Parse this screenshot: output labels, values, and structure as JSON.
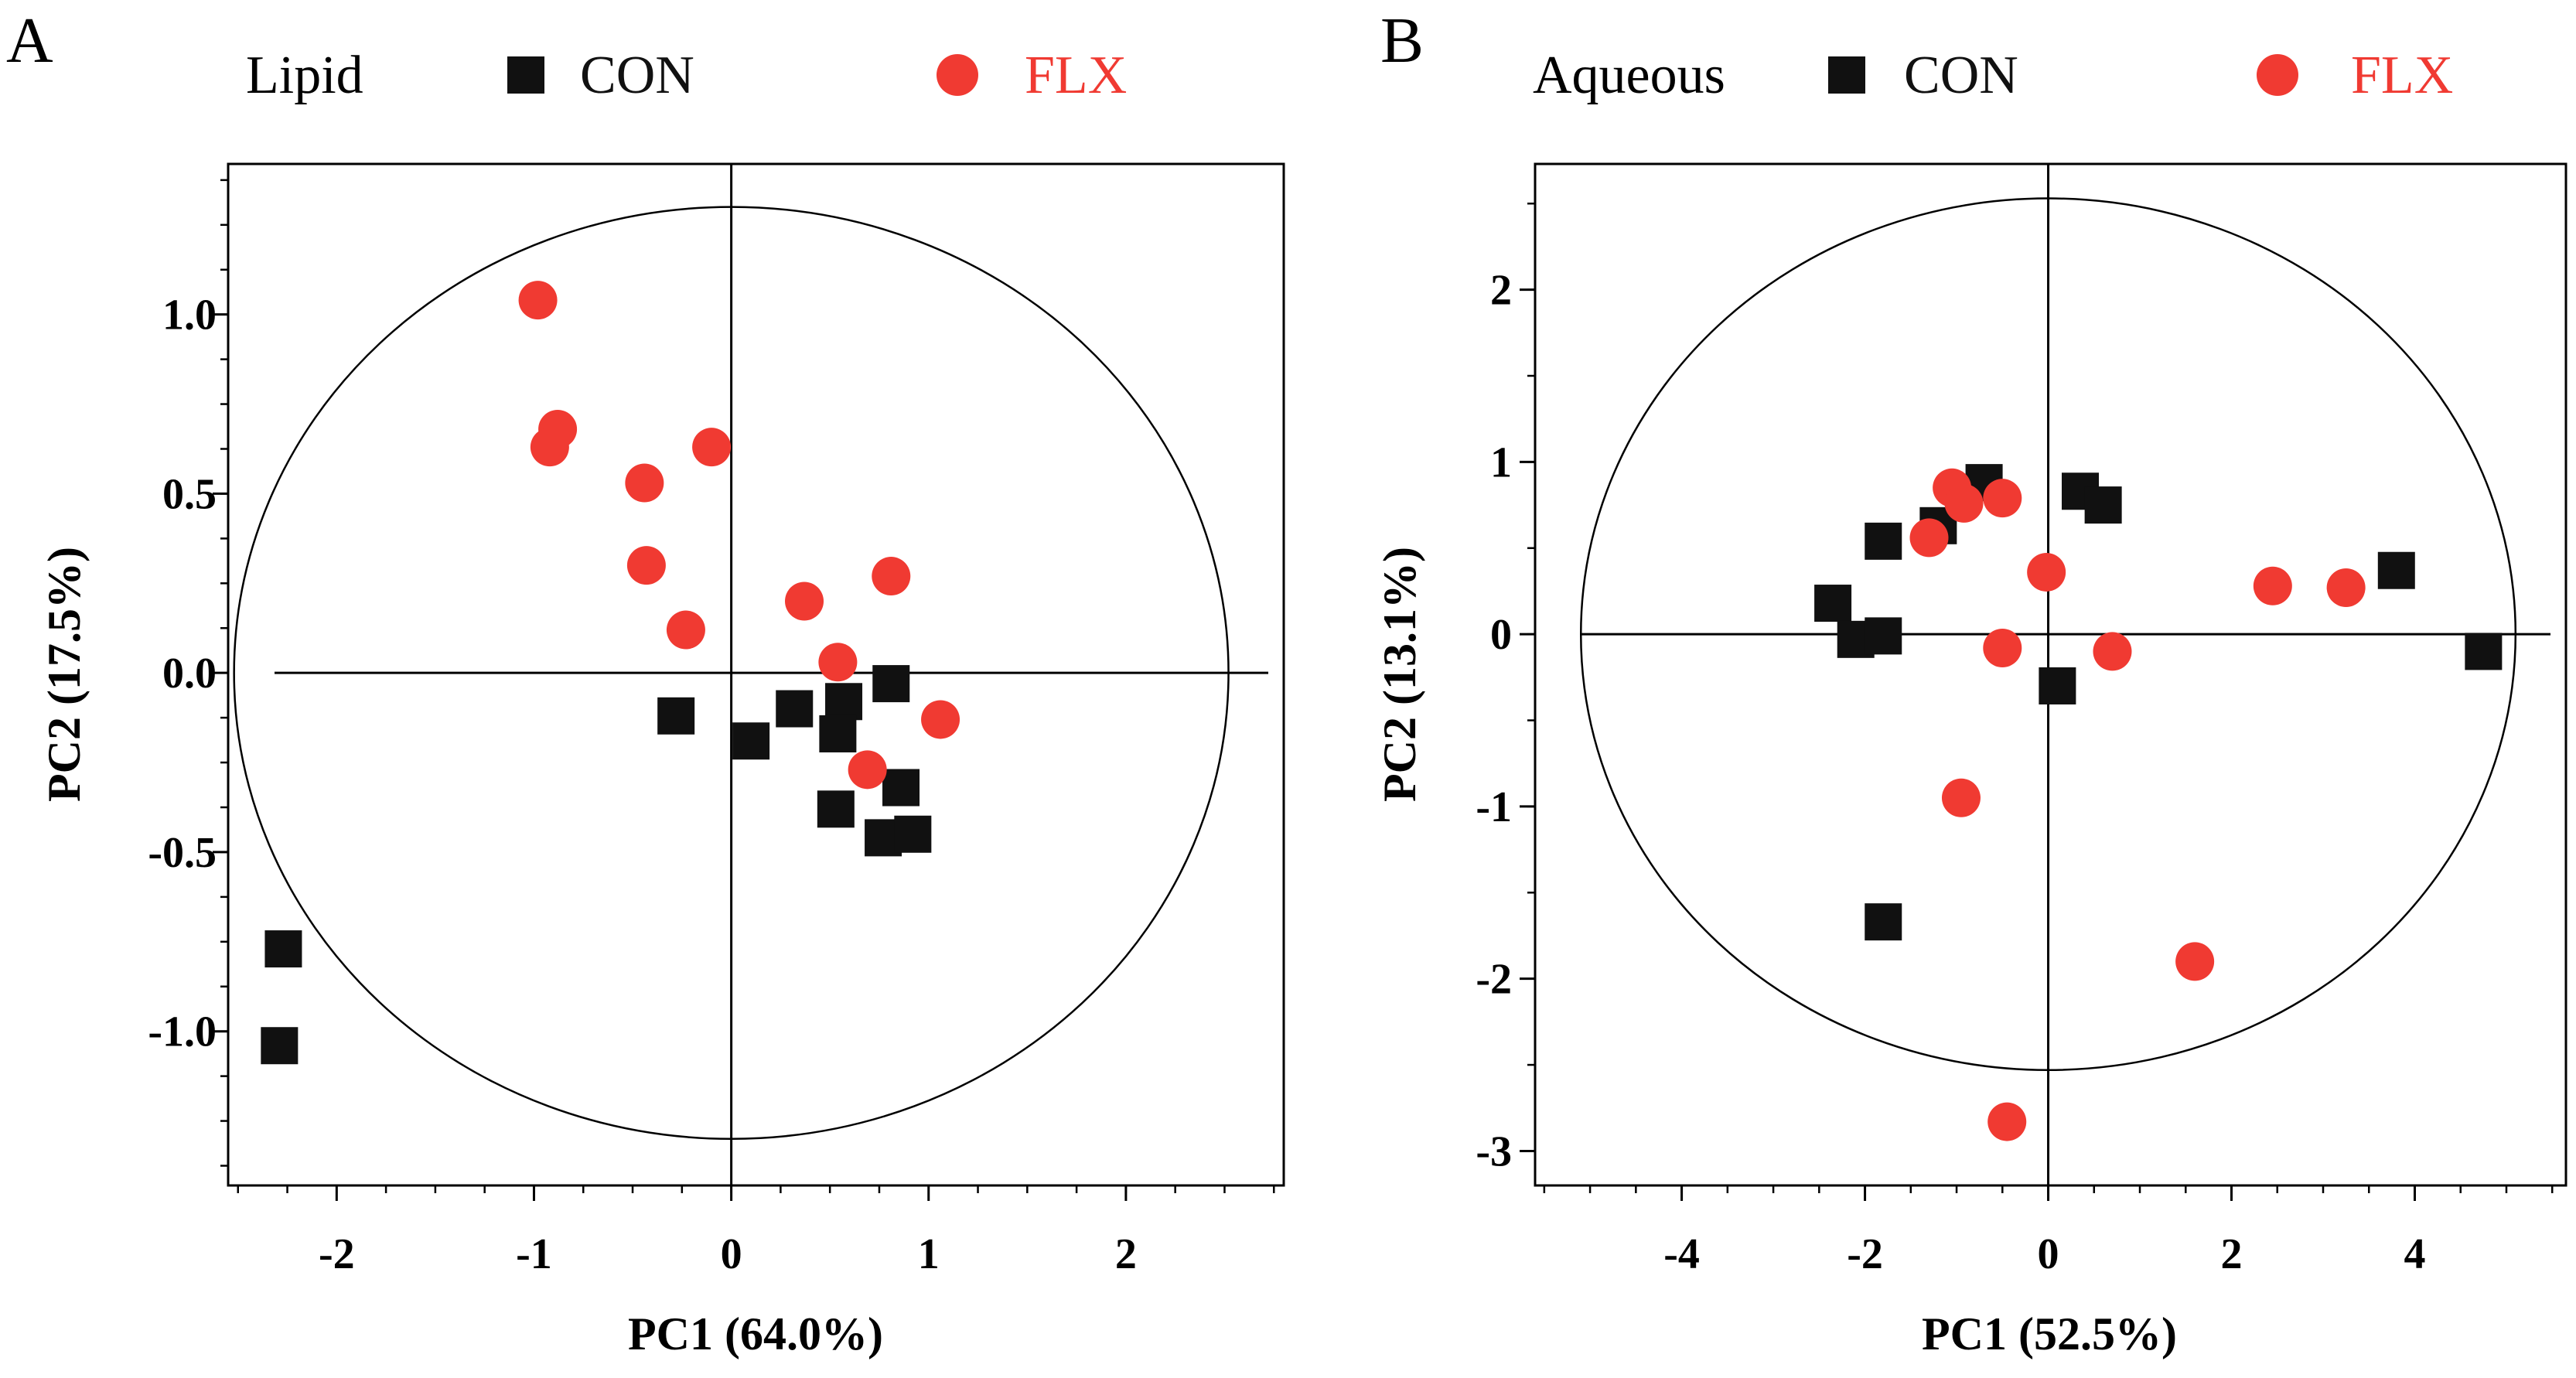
{
  "chart_data": [
    {
      "type": "scatter",
      "panel_letter": "A",
      "title": "Lipid",
      "xlabel": "PC1 (64.0%)",
      "ylabel": "PC2 (17.5%)",
      "xlim": [
        -2.55,
        2.8
      ],
      "ylim": [
        -1.43,
        1.42
      ],
      "xticks": [
        -2,
        -1,
        0,
        1,
        2
      ],
      "xtick_labels": [
        "-2",
        "-1",
        "0",
        "1",
        "2"
      ],
      "yticks": [
        -1.0,
        -0.5,
        0.0,
        0.5,
        1.0
      ],
      "ytick_labels": [
        "-1.0",
        "-0.5",
        "0.0",
        "0.5",
        "1.0"
      ],
      "xminor_step": 0.25,
      "yminor_step": 0.125,
      "ellipse": {
        "cx": 0,
        "cy": 0,
        "rx": 2.52,
        "ry": 1.3
      },
      "grid": false,
      "legend_position": "top",
      "series": [
        {
          "name": "CON",
          "marker": "square",
          "color": "#111111",
          "points": [
            [
              -2.27,
              -0.77
            ],
            [
              -2.29,
              -1.04
            ],
            [
              -0.28,
              -0.12
            ],
            [
              0.1,
              -0.19
            ],
            [
              0.32,
              -0.1
            ],
            [
              0.57,
              -0.08
            ],
            [
              0.54,
              -0.17
            ],
            [
              0.81,
              -0.03
            ],
            [
              0.53,
              -0.38
            ],
            [
              0.77,
              -0.46
            ],
            [
              0.92,
              -0.45
            ],
            [
              0.86,
              -0.32
            ]
          ]
        },
        {
          "name": "FLX",
          "marker": "circle",
          "color": "#F03A32",
          "points": [
            [
              -0.98,
              1.04
            ],
            [
              -0.88,
              0.68
            ],
            [
              -0.92,
              0.63
            ],
            [
              -0.1,
              0.63
            ],
            [
              -0.44,
              0.53
            ],
            [
              -0.43,
              0.3
            ],
            [
              -0.23,
              0.12
            ],
            [
              0.37,
              0.2
            ],
            [
              0.81,
              0.27
            ],
            [
              0.54,
              0.03
            ],
            [
              1.06,
              -0.13
            ],
            [
              0.69,
              -0.27
            ]
          ]
        }
      ]
    },
    {
      "type": "scatter",
      "panel_letter": "B",
      "title": "Aqueous",
      "xlabel": "PC1 (52.5%)",
      "ylabel": "PC2 (13.1%)",
      "xlim": [
        -5.6,
        5.65
      ],
      "ylim": [
        -3.2,
        2.73
      ],
      "xticks": [
        -4,
        -2,
        0,
        2,
        4
      ],
      "xtick_labels": [
        "-4",
        "-2",
        "0",
        "2",
        "4"
      ],
      "yticks": [
        -3,
        -2,
        -1,
        0,
        1,
        2
      ],
      "ytick_labels": [
        "-3",
        "-2",
        "-1",
        "0",
        "1",
        "2"
      ],
      "xminor_step": 0.5,
      "yminor_step": 0.5,
      "ellipse": {
        "cx": 0,
        "cy": 0,
        "rx": 5.1,
        "ry": 2.53
      },
      "grid": false,
      "legend_position": "top",
      "series": [
        {
          "name": "CON",
          "marker": "square",
          "color": "#111111",
          "points": [
            [
              -2.35,
              0.18
            ],
            [
              -2.1,
              -0.03
            ],
            [
              -1.8,
              -0.01
            ],
            [
              -1.8,
              0.54
            ],
            [
              -1.8,
              -1.67
            ],
            [
              -1.2,
              0.63
            ],
            [
              -0.7,
              0.88
            ],
            [
              0.35,
              0.83
            ],
            [
              0.6,
              0.75
            ],
            [
              0.1,
              -0.3
            ],
            [
              3.8,
              0.37
            ],
            [
              4.75,
              -0.1
            ]
          ]
        },
        {
          "name": "FLX",
          "marker": "circle",
          "color": "#F03A32",
          "points": [
            [
              -1.3,
              0.56
            ],
            [
              -1.05,
              0.85
            ],
            [
              -0.92,
              0.76
            ],
            [
              -0.5,
              0.79
            ],
            [
              -0.02,
              0.36
            ],
            [
              -0.5,
              -0.08
            ],
            [
              0.7,
              -0.1
            ],
            [
              -0.95,
              -0.95
            ],
            [
              2.45,
              0.28
            ],
            [
              3.25,
              0.27
            ],
            [
              1.6,
              -1.9
            ],
            [
              -0.45,
              -2.83
            ]
          ]
        }
      ]
    }
  ]
}
